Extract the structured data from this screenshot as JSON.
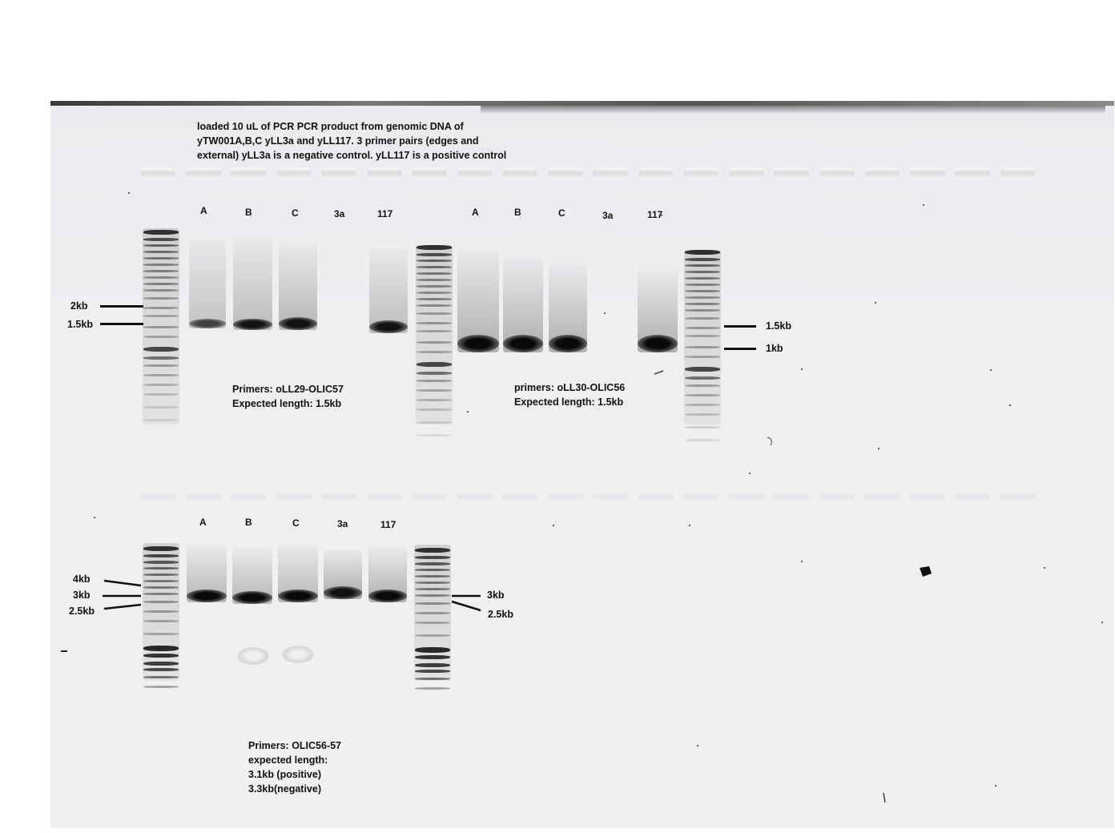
{
  "note": {
    "line1": "loaded 10 uL of PCR PCR product from genomic DNA of",
    "line2": "yTW001A,B,C yLL3a and yLL117. 3 primer pairs (edges and",
    "line3": "external)  yLL3a is a negative control. yLL117 is a positive control"
  },
  "gel1": {
    "lanes_left": [
      "A",
      "B",
      "C",
      "3a",
      "117"
    ],
    "lanes_right": [
      "A",
      "B",
      "C",
      "3a",
      "117"
    ],
    "left_markers": [
      "2kb",
      "1.5kb"
    ],
    "right_markers": [
      "1.5kb",
      "1kb"
    ],
    "primers_left": {
      "line1": "Primers: oLL29-OLIC57",
      "line2": "Expected length: 1.5kb"
    },
    "primers_right": {
      "line1": "primers: oLL30-OLIC56",
      "line2": "Expected length: 1.5kb"
    }
  },
  "gel2": {
    "lanes": [
      "A",
      "B",
      "C",
      "3a",
      "117"
    ],
    "left_markers": [
      "4kb",
      "3kb",
      "2.5kb"
    ],
    "right_markers": [
      "3kb",
      "2.5kb"
    ],
    "primers": {
      "line1": "Primers: OLIC56-57",
      "line2": "expected length:",
      "line3": "3.1kb (positive)",
      "line4": "3.3kb(negative)"
    }
  }
}
